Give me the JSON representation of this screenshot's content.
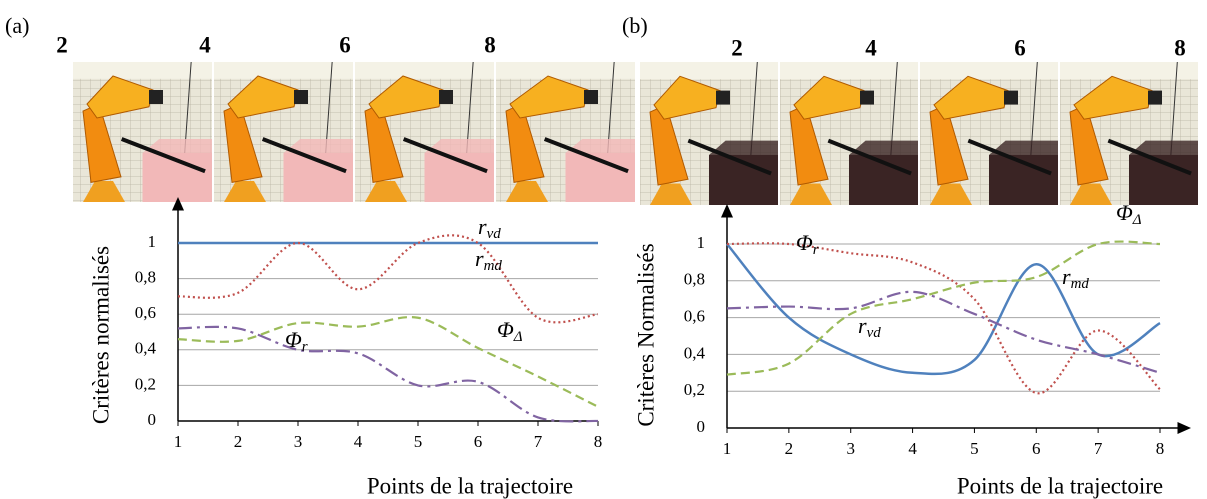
{
  "chart_data": [
    {
      "type": "line",
      "panel_label": "(a)",
      "image_labels": [
        "2",
        "4",
        "6",
        "8"
      ],
      "y_label": "Critères normalisés",
      "x_label": "Points de la trajectoire",
      "x": [
        1,
        2,
        3,
        4,
        5,
        6,
        7,
        8
      ],
      "xlim": [
        1,
        8
      ],
      "xticks": [
        1,
        2,
        3,
        4,
        5,
        6,
        7,
        8
      ],
      "ylim": [
        0,
        1
      ],
      "yticks": [
        0,
        {
          "value": 0.2,
          "label": "0,2"
        },
        {
          "value": 0.4,
          "label": "0,4"
        },
        {
          "value": 0.6,
          "label": "0,6"
        },
        {
          "value": 0.8,
          "label": "0,8"
        },
        1
      ],
      "grid": true,
      "series": [
        {
          "name": "rvd",
          "color": "#4f81bd",
          "linestyle": "solid",
          "values": [
            1,
            1,
            1,
            1,
            1,
            1,
            1,
            1
          ]
        },
        {
          "name": "rmd",
          "color": "#c0504d",
          "linestyle": "dotted",
          "values": [
            0.7,
            0.72,
            1,
            0.74,
            1,
            1,
            0.58,
            0.6
          ]
        },
        {
          "name": "ΦΔ",
          "color": "#9bbb59",
          "linestyle": "dashed",
          "values": [
            0.46,
            0.45,
            0.55,
            0.53,
            0.58,
            0.41,
            0.25,
            0.08
          ]
        },
        {
          "name": "Φr",
          "color": "#8064a2",
          "linestyle": "dashdot",
          "values": [
            0.52,
            0.52,
            0.4,
            0.38,
            0.2,
            0.22,
            0.02,
            0
          ]
        }
      ]
    },
    {
      "type": "line",
      "panel_label": "(b)",
      "image_labels": [
        "2",
        "4",
        "6",
        "8"
      ],
      "y_label": "Critères Normalisés",
      "x_label": "Points de la trajectoire",
      "x": [
        1,
        2,
        3,
        4,
        5,
        6,
        7,
        8
      ],
      "xlim": [
        1,
        8
      ],
      "xticks": [
        1,
        2,
        3,
        4,
        5,
        6,
        7,
        8
      ],
      "ylim": [
        0,
        1
      ],
      "yticks": [
        0,
        {
          "value": 0.2,
          "label": "0,2"
        },
        {
          "value": 0.4,
          "label": "0,4"
        },
        {
          "value": 0.6,
          "label": "0,6"
        },
        {
          "value": 0.8,
          "label": "0,8"
        },
        1
      ],
      "grid": true,
      "series": [
        {
          "name": "rmd",
          "color": "#4f81bd",
          "linestyle": "solid",
          "values": [
            1,
            0.6,
            0.4,
            0.3,
            0.37,
            0.89,
            0.4,
            0.57
          ]
        },
        {
          "name": "Φr",
          "color": "#c0504d",
          "linestyle": "dotted",
          "values": [
            1,
            1,
            0.95,
            0.9,
            0.7,
            0.19,
            0.53,
            0.21
          ]
        },
        {
          "name": "ΦΔ",
          "color": "#9bbb59",
          "linestyle": "dashed",
          "values": [
            0.29,
            0.35,
            0.62,
            0.7,
            0.79,
            0.82,
            1,
            1
          ]
        },
        {
          "name": "rvd",
          "color": "#8064a2",
          "linestyle": "dashdot",
          "values": [
            0.65,
            0.66,
            0.65,
            0.74,
            0.62,
            0.48,
            0.4,
            0.3
          ]
        }
      ]
    }
  ]
}
